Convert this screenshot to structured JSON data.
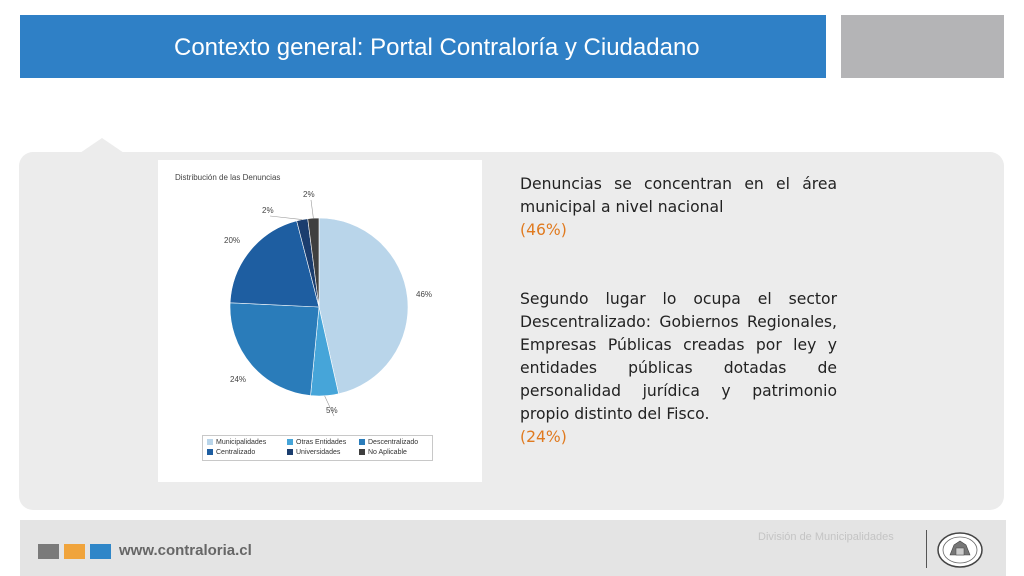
{
  "slide": {
    "title": "Contexto general: Portal Contraloría y Ciudadano"
  },
  "chart_data": {
    "type": "pie",
    "title": "Distribución de las Denuncias",
    "categories": [
      "Municipalidades",
      "Otras Entidades",
      "Descentralizado",
      "Centralizado",
      "Universidades",
      "No Aplicable"
    ],
    "values": [
      46,
      5,
      24,
      20,
      2,
      2
    ],
    "labels": [
      "46%",
      "5%",
      "24%",
      "20%",
      "2%",
      "2%"
    ],
    "colors": [
      "#b9d5ea",
      "#46a5d9",
      "#2a7cba",
      "#1e5ea1",
      "#1b3d6e",
      "#3f3f3f"
    ],
    "legend_position": "bottom"
  },
  "text": {
    "para1": "Denuncias se concentran en el área municipal a nivel nacional",
    "para1_pct": "(46%)",
    "para2": "Segundo lugar lo ocupa el sector Descentralizado: Gobiernos Regionales, Empresas Públicas creadas por ley y entidades públicas dotadas de personalidad jurídica y patrimonio propio distinto del Fisco.",
    "para2_pct": "(24%)"
  },
  "footer": {
    "url": "www.contraloria.cl",
    "division": "División de Municipalidades",
    "square_colors": [
      "#7a7a7a",
      "#f0a43c",
      "#2f86c8"
    ]
  },
  "colors": {
    "title_bar": "#2f80c6",
    "accent_orange": "#e07a1f"
  }
}
